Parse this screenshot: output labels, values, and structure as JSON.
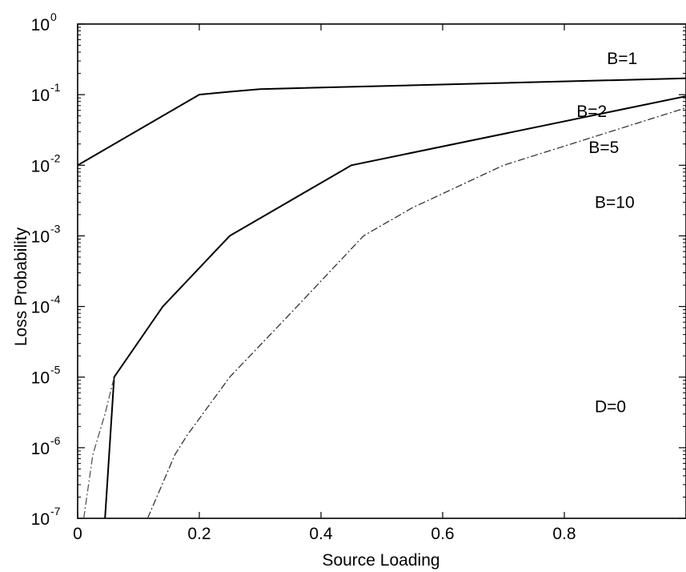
{
  "chart_data": {
    "type": "line",
    "title": "",
    "xlabel": "Source Loading",
    "ylabel": "Loss Probability",
    "x_scale": "linear",
    "y_scale": "log",
    "xlim": [
      0,
      1
    ],
    "ylim": [
      1e-07,
      1
    ],
    "grid": false,
    "x_ticks": [
      "0",
      "0.2",
      "0.4",
      "0.6",
      "0.8"
    ],
    "y_ticks": [
      {
        "base": "10",
        "exp": "0"
      },
      {
        "base": "10",
        "exp": "-1"
      },
      {
        "base": "10",
        "exp": "-2"
      },
      {
        "base": "10",
        "exp": "-3"
      },
      {
        "base": "10",
        "exp": "-4"
      },
      {
        "base": "10",
        "exp": "-5"
      },
      {
        "base": "10",
        "exp": "-6"
      },
      {
        "base": "10",
        "exp": "-7"
      }
    ],
    "series": [
      {
        "name": "B=1",
        "style": "solid",
        "color": "#000000",
        "x": [
          0,
          0.2,
          0.25,
          0.3,
          1.0
        ],
        "y": [
          0.01,
          0.1,
          0.11,
          0.12,
          0.17
        ]
      },
      {
        "name": "B=2",
        "style": "solid",
        "color": "#000000",
        "x": [
          0.045,
          0.06,
          0.14,
          0.25,
          0.45,
          1.0
        ],
        "y": [
          1e-07,
          1e-05,
          0.0001,
          0.001,
          0.01,
          0.095
        ]
      },
      {
        "name": "B=5",
        "style": "dashdot",
        "color": "#333333",
        "x": [
          0.115,
          0.16,
          0.18,
          0.25,
          0.35,
          0.47,
          0.55,
          0.7,
          1.0
        ],
        "y": [
          1e-07,
          8e-07,
          1.5e-06,
          1e-05,
          8e-05,
          0.001,
          0.0025,
          0.01,
          0.065
        ]
      },
      {
        "name": "B=10",
        "style": "dashdot",
        "color": "#555555",
        "x": [
          0.01,
          0.025,
          0.045,
          0.06
        ],
        "y": [
          1e-07,
          8e-07,
          3e-06,
          1e-05
        ]
      }
    ],
    "annotations": [
      {
        "text": "B=1",
        "x": 0.87,
        "y": 0.27
      },
      {
        "text": "B=2",
        "x": 0.82,
        "y": 0.048
      },
      {
        "text": "B=5",
        "x": 0.84,
        "y": 0.015
      },
      {
        "text": "B=10",
        "x": 0.85,
        "y": 0.0025
      },
      {
        "text": "D=0",
        "x": 0.85,
        "y": 3.2e-06
      }
    ]
  }
}
